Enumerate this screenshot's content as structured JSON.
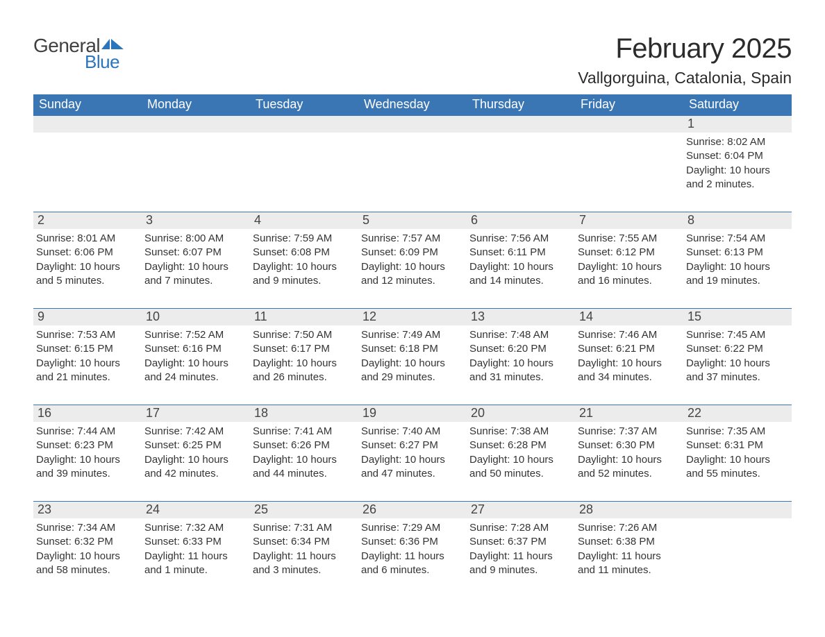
{
  "logo": {
    "text1": "General",
    "text2": "Blue",
    "flag_color": "#2a75bb"
  },
  "title": "February 2025",
  "location": "Vallgorguina, Catalonia, Spain",
  "colors": {
    "header_bg": "#3a76b4",
    "header_text": "#ffffff",
    "daynum_bg": "#ececec",
    "rule": "#3a76b4",
    "text": "#303030",
    "logo_gray": "#404040",
    "logo_blue": "#2a75bb",
    "background": "#ffffff"
  },
  "typography": {
    "title_fontsize": 40,
    "location_fontsize": 23,
    "weekday_fontsize": 18,
    "daynum_fontsize": 18,
    "body_fontsize": 15
  },
  "weekdays": [
    "Sunday",
    "Monday",
    "Tuesday",
    "Wednesday",
    "Thursday",
    "Friday",
    "Saturday"
  ],
  "weeks": [
    [
      {
        "n": "",
        "sr": "",
        "ss": "",
        "dl": ""
      },
      {
        "n": "",
        "sr": "",
        "ss": "",
        "dl": ""
      },
      {
        "n": "",
        "sr": "",
        "ss": "",
        "dl": ""
      },
      {
        "n": "",
        "sr": "",
        "ss": "",
        "dl": ""
      },
      {
        "n": "",
        "sr": "",
        "ss": "",
        "dl": ""
      },
      {
        "n": "",
        "sr": "",
        "ss": "",
        "dl": ""
      },
      {
        "n": "1",
        "sr": "Sunrise: 8:02 AM",
        "ss": "Sunset: 6:04 PM",
        "dl": "Daylight: 10 hours and 2 minutes."
      }
    ],
    [
      {
        "n": "2",
        "sr": "Sunrise: 8:01 AM",
        "ss": "Sunset: 6:06 PM",
        "dl": "Daylight: 10 hours and 5 minutes."
      },
      {
        "n": "3",
        "sr": "Sunrise: 8:00 AM",
        "ss": "Sunset: 6:07 PM",
        "dl": "Daylight: 10 hours and 7 minutes."
      },
      {
        "n": "4",
        "sr": "Sunrise: 7:59 AM",
        "ss": "Sunset: 6:08 PM",
        "dl": "Daylight: 10 hours and 9 minutes."
      },
      {
        "n": "5",
        "sr": "Sunrise: 7:57 AM",
        "ss": "Sunset: 6:09 PM",
        "dl": "Daylight: 10 hours and 12 minutes."
      },
      {
        "n": "6",
        "sr": "Sunrise: 7:56 AM",
        "ss": "Sunset: 6:11 PM",
        "dl": "Daylight: 10 hours and 14 minutes."
      },
      {
        "n": "7",
        "sr": "Sunrise: 7:55 AM",
        "ss": "Sunset: 6:12 PM",
        "dl": "Daylight: 10 hours and 16 minutes."
      },
      {
        "n": "8",
        "sr": "Sunrise: 7:54 AM",
        "ss": "Sunset: 6:13 PM",
        "dl": "Daylight: 10 hours and 19 minutes."
      }
    ],
    [
      {
        "n": "9",
        "sr": "Sunrise: 7:53 AM",
        "ss": "Sunset: 6:15 PM",
        "dl": "Daylight: 10 hours and 21 minutes."
      },
      {
        "n": "10",
        "sr": "Sunrise: 7:52 AM",
        "ss": "Sunset: 6:16 PM",
        "dl": "Daylight: 10 hours and 24 minutes."
      },
      {
        "n": "11",
        "sr": "Sunrise: 7:50 AM",
        "ss": "Sunset: 6:17 PM",
        "dl": "Daylight: 10 hours and 26 minutes."
      },
      {
        "n": "12",
        "sr": "Sunrise: 7:49 AM",
        "ss": "Sunset: 6:18 PM",
        "dl": "Daylight: 10 hours and 29 minutes."
      },
      {
        "n": "13",
        "sr": "Sunrise: 7:48 AM",
        "ss": "Sunset: 6:20 PM",
        "dl": "Daylight: 10 hours and 31 minutes."
      },
      {
        "n": "14",
        "sr": "Sunrise: 7:46 AM",
        "ss": "Sunset: 6:21 PM",
        "dl": "Daylight: 10 hours and 34 minutes."
      },
      {
        "n": "15",
        "sr": "Sunrise: 7:45 AM",
        "ss": "Sunset: 6:22 PM",
        "dl": "Daylight: 10 hours and 37 minutes."
      }
    ],
    [
      {
        "n": "16",
        "sr": "Sunrise: 7:44 AM",
        "ss": "Sunset: 6:23 PM",
        "dl": "Daylight: 10 hours and 39 minutes."
      },
      {
        "n": "17",
        "sr": "Sunrise: 7:42 AM",
        "ss": "Sunset: 6:25 PM",
        "dl": "Daylight: 10 hours and 42 minutes."
      },
      {
        "n": "18",
        "sr": "Sunrise: 7:41 AM",
        "ss": "Sunset: 6:26 PM",
        "dl": "Daylight: 10 hours and 44 minutes."
      },
      {
        "n": "19",
        "sr": "Sunrise: 7:40 AM",
        "ss": "Sunset: 6:27 PM",
        "dl": "Daylight: 10 hours and 47 minutes."
      },
      {
        "n": "20",
        "sr": "Sunrise: 7:38 AM",
        "ss": "Sunset: 6:28 PM",
        "dl": "Daylight: 10 hours and 50 minutes."
      },
      {
        "n": "21",
        "sr": "Sunrise: 7:37 AM",
        "ss": "Sunset: 6:30 PM",
        "dl": "Daylight: 10 hours and 52 minutes."
      },
      {
        "n": "22",
        "sr": "Sunrise: 7:35 AM",
        "ss": "Sunset: 6:31 PM",
        "dl": "Daylight: 10 hours and 55 minutes."
      }
    ],
    [
      {
        "n": "23",
        "sr": "Sunrise: 7:34 AM",
        "ss": "Sunset: 6:32 PM",
        "dl": "Daylight: 10 hours and 58 minutes."
      },
      {
        "n": "24",
        "sr": "Sunrise: 7:32 AM",
        "ss": "Sunset: 6:33 PM",
        "dl": "Daylight: 11 hours and 1 minute."
      },
      {
        "n": "25",
        "sr": "Sunrise: 7:31 AM",
        "ss": "Sunset: 6:34 PM",
        "dl": "Daylight: 11 hours and 3 minutes."
      },
      {
        "n": "26",
        "sr": "Sunrise: 7:29 AM",
        "ss": "Sunset: 6:36 PM",
        "dl": "Daylight: 11 hours and 6 minutes."
      },
      {
        "n": "27",
        "sr": "Sunrise: 7:28 AM",
        "ss": "Sunset: 6:37 PM",
        "dl": "Daylight: 11 hours and 9 minutes."
      },
      {
        "n": "28",
        "sr": "Sunrise: 7:26 AM",
        "ss": "Sunset: 6:38 PM",
        "dl": "Daylight: 11 hours and 11 minutes."
      },
      {
        "n": "",
        "sr": "",
        "ss": "",
        "dl": ""
      }
    ]
  ]
}
